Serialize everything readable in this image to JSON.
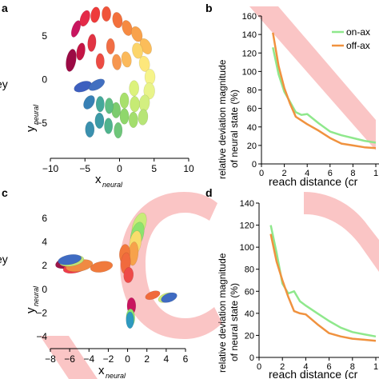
{
  "panels": {
    "a": {
      "letter": "a",
      "edge_label": "key",
      "xlabel": "x",
      "xlabel_sub": "neural",
      "ylabel": "y",
      "ylabel_sub": "neural",
      "xticks": [
        "−10",
        "−5",
        "0",
        "5",
        "10"
      ],
      "yticks": [
        "5",
        "0",
        "−5"
      ]
    },
    "b": {
      "letter": "b",
      "ylabel_line1": "relative deviation magnitude",
      "ylabel_line2": "of neural state (%)",
      "xlabel": "reach distance (cr",
      "xticks": [
        "0",
        "2",
        "4",
        "6",
        "8",
        "1"
      ],
      "yticks": [
        "160",
        "140",
        "120",
        "100",
        "80",
        "60",
        "40",
        "20",
        "0"
      ],
      "legend": [
        "on-ax",
        "off-ax"
      ]
    },
    "c": {
      "letter": "c",
      "edge_label": "key",
      "xlabel": "x",
      "xlabel_sub": "neural",
      "ylabel": "y",
      "ylabel_sub": "neural",
      "xticks": [
        "−8",
        "−6",
        "−4",
        "−2",
        "0",
        "2",
        "4",
        "6"
      ],
      "yticks": [
        "6",
        "4",
        "2",
        "0",
        "−2",
        "−4"
      ]
    },
    "d": {
      "letter": "d",
      "ylabel_line1": "relative deviation magnitude",
      "ylabel_line2": "of neural state (%)",
      "xlabel": "reach distance (cr",
      "xticks": [
        "0",
        "2",
        "4",
        "6",
        "8",
        "1"
      ],
      "yticks": [
        "140",
        "120",
        "100",
        "80",
        "60",
        "40",
        "20",
        "0"
      ]
    }
  },
  "colors": {
    "on_axis": "#8fe88c",
    "off_axis": "#f0923f",
    "watermark": "#f05a5a"
  },
  "chart_data": [
    {
      "panel": "b",
      "type": "line",
      "xlabel": "reach distance (cr",
      "ylabel": "relative deviation magnitude of neural state (%)",
      "xlim": [
        0,
        10
      ],
      "ylim": [
        0,
        160
      ],
      "series": [
        {
          "name": "on-ax",
          "color": "#8fe88c",
          "x": [
            1,
            1.5,
            2,
            2.5,
            3,
            3.5,
            4,
            5,
            6,
            7,
            8,
            9,
            10
          ],
          "y": [
            126,
            97,
            78,
            67,
            56,
            53,
            54,
            44,
            35,
            31,
            28,
            25,
            23
          ]
        },
        {
          "name": "off-ax",
          "color": "#f0923f",
          "x": [
            1,
            1.5,
            2,
            2.5,
            3,
            3.5,
            4,
            5,
            6,
            7,
            8,
            9,
            10
          ],
          "y": [
            142,
            106,
            82,
            65,
            51,
            47,
            43,
            36,
            28,
            22,
            20,
            18,
            17
          ]
        }
      ]
    },
    {
      "panel": "d",
      "type": "line",
      "xlabel": "reach distance (cr",
      "ylabel": "relative deviation magnitude of neural state (%)",
      "xlim": [
        0,
        10
      ],
      "ylim": [
        0,
        140
      ],
      "series": [
        {
          "name": "on-ax",
          "color": "#8fe88c",
          "x": [
            1,
            1.5,
            2,
            2.5,
            3,
            3.5,
            4,
            5,
            6,
            7,
            8,
            9,
            10
          ],
          "y": [
            120,
            95,
            67,
            58,
            60,
            51,
            47,
            40,
            33,
            27,
            23,
            21,
            19
          ]
        },
        {
          "name": "off-ax",
          "color": "#f0923f",
          "x": [
            1,
            1.5,
            2,
            2.5,
            3,
            3.5,
            4,
            5,
            6,
            7,
            8,
            9,
            10
          ],
          "y": [
            112,
            87,
            70,
            55,
            42,
            40,
            39,
            30,
            22,
            19,
            17,
            16,
            15
          ]
        }
      ]
    },
    {
      "panel": "a",
      "type": "scatter",
      "xlabel": "x neural",
      "ylabel": "y neural",
      "xlim": [
        -10,
        10
      ],
      "ylim": [
        -9,
        8
      ],
      "points": [
        {
          "x": -6.3,
          "y": 5.8,
          "w": 1.1,
          "h": 2.0,
          "rot": 20,
          "color": "#c8155f"
        },
        {
          "x": -5.0,
          "y": 7.0,
          "w": 1.3,
          "h": 1.9,
          "rot": 20,
          "color": "#e42a48"
        },
        {
          "x": -3.5,
          "y": 7.4,
          "w": 1.3,
          "h": 1.8,
          "rot": 10,
          "color": "#ee3b3b"
        },
        {
          "x": -1.9,
          "y": 7.5,
          "w": 1.3,
          "h": 1.7,
          "rot": 0,
          "color": "#f0543a"
        },
        {
          "x": -0.3,
          "y": 6.8,
          "w": 1.4,
          "h": 1.8,
          "rot": -10,
          "color": "#f3703c"
        },
        {
          "x": 1.1,
          "y": 5.9,
          "w": 1.4,
          "h": 1.8,
          "rot": -15,
          "color": "#f68a42"
        },
        {
          "x": 2.5,
          "y": 5.2,
          "w": 1.5,
          "h": 1.8,
          "rot": -20,
          "color": "#f8a24c"
        },
        {
          "x": 3.8,
          "y": 3.8,
          "w": 1.5,
          "h": 1.9,
          "rot": -25,
          "color": "#fbbd5a"
        },
        {
          "x": -7.0,
          "y": 2.2,
          "w": 1.4,
          "h": 2.6,
          "rot": 10,
          "color": "#9b0a44"
        },
        {
          "x": -5.6,
          "y": 3.2,
          "w": 1.2,
          "h": 2.0,
          "rot": 10,
          "color": "#c41545"
        },
        {
          "x": -4.0,
          "y": 4.2,
          "w": 1.2,
          "h": 2.0,
          "rot": 5,
          "color": "#e13343"
        },
        {
          "x": -2.8,
          "y": 2.1,
          "w": 1.2,
          "h": 1.8,
          "rot": 0,
          "color": "#ec4b43"
        },
        {
          "x": -1.3,
          "y": 3.8,
          "w": 1.2,
          "h": 1.8,
          "rot": 0,
          "color": "#f16e45"
        },
        {
          "x": -0.4,
          "y": 2.0,
          "w": 1.3,
          "h": 1.8,
          "rot": -5,
          "color": "#f6964f"
        },
        {
          "x": 1.0,
          "y": 2.3,
          "w": 1.4,
          "h": 1.8,
          "rot": -10,
          "color": "#fbb95b"
        },
        {
          "x": 2.6,
          "y": 3.3,
          "w": 1.5,
          "h": 1.8,
          "rot": -10,
          "color": "#fcd56a"
        },
        {
          "x": 3.6,
          "y": 1.8,
          "w": 1.5,
          "h": 1.8,
          "rot": -10,
          "color": "#fde77b"
        },
        {
          "x": 4.4,
          "y": 0.3,
          "w": 1.5,
          "h": 1.8,
          "rot": 0,
          "color": "#f6f48a"
        },
        {
          "x": 4.3,
          "y": -1.3,
          "w": 1.6,
          "h": 1.9,
          "rot": 0,
          "color": "#e9f48a"
        },
        {
          "x": 3.6,
          "y": -2.7,
          "w": 1.5,
          "h": 1.9,
          "rot": 5,
          "color": "#d3ef80"
        },
        {
          "x": 3.4,
          "y": -4.3,
          "w": 1.4,
          "h": 1.8,
          "rot": 5,
          "color": "#b7e577"
        },
        {
          "x": 2.1,
          "y": -1.0,
          "w": 1.4,
          "h": 1.8,
          "rot": 0,
          "color": "#dcf27c"
        },
        {
          "x": 2.2,
          "y": -2.8,
          "w": 1.4,
          "h": 1.8,
          "rot": 0,
          "color": "#c6eb74"
        },
        {
          "x": 2.0,
          "y": -4.6,
          "w": 1.3,
          "h": 1.8,
          "rot": 0,
          "color": "#a3de6d"
        },
        {
          "x": 0.7,
          "y": -2.4,
          "w": 1.3,
          "h": 1.8,
          "rot": 0,
          "color": "#a8e06c"
        },
        {
          "x": 0.7,
          "y": -4.2,
          "w": 1.3,
          "h": 1.8,
          "rot": 0,
          "color": "#8fd76b"
        },
        {
          "x": -0.5,
          "y": -3.5,
          "w": 1.3,
          "h": 1.8,
          "rot": 0,
          "color": "#7ccc6e"
        },
        {
          "x": -0.2,
          "y": -5.8,
          "w": 1.2,
          "h": 1.8,
          "rot": 0,
          "color": "#6fc67a"
        },
        {
          "x": -1.5,
          "y": -3.0,
          "w": 1.2,
          "h": 1.8,
          "rot": 0,
          "color": "#5fbf83"
        },
        {
          "x": -1.6,
          "y": -5.3,
          "w": 1.2,
          "h": 1.8,
          "rot": 0,
          "color": "#4fb38d"
        },
        {
          "x": -2.8,
          "y": -2.8,
          "w": 1.2,
          "h": 1.8,
          "rot": 0,
          "color": "#44a89a"
        },
        {
          "x": -2.9,
          "y": -4.7,
          "w": 1.3,
          "h": 1.8,
          "rot": 0,
          "color": "#3c9aa6"
        },
        {
          "x": -4.4,
          "y": -2.6,
          "w": 1.4,
          "h": 1.7,
          "rot": 30,
          "color": "#3780b5"
        },
        {
          "x": -4.3,
          "y": -5.7,
          "w": 1.3,
          "h": 1.8,
          "rot": 0,
          "color": "#3a90ae"
        },
        {
          "x": -5.3,
          "y": -0.8,
          "w": 1.4,
          "h": 2.1,
          "rot": 70,
          "color": "#3d5fbf"
        },
        {
          "x": -3.3,
          "y": -0.6,
          "w": 1.3,
          "h": 2.0,
          "rot": 60,
          "color": "#416fc0"
        }
      ]
    },
    {
      "panel": "c",
      "type": "scatter",
      "xlabel": "x neural",
      "ylabel": "y neural",
      "xlim": [
        -8,
        6
      ],
      "ylim": [
        -5,
        7
      ],
      "points": [
        {
          "x": 1.2,
          "y": 5.4,
          "w": 1.3,
          "h": 2.2,
          "rot": 20,
          "color": "#c8ec78"
        },
        {
          "x": 1.0,
          "y": 4.6,
          "w": 1.3,
          "h": 2.2,
          "rot": 15,
          "color": "#8de36e"
        },
        {
          "x": 0.8,
          "y": 3.9,
          "w": 1.2,
          "h": 2.1,
          "rot": 10,
          "color": "#f8dd6c"
        },
        {
          "x": 0.6,
          "y": 3.0,
          "w": 1.0,
          "h": 2.0,
          "rot": 5,
          "color": "#f7a24b"
        },
        {
          "x": -0.3,
          "y": 3.0,
          "w": 1.1,
          "h": 1.6,
          "rot": 5,
          "color": "#f2783c"
        },
        {
          "x": -0.2,
          "y": 2.2,
          "w": 1.0,
          "h": 1.8,
          "rot": 5,
          "color": "#f16a3d"
        },
        {
          "x": 0.1,
          "y": 1.2,
          "w": 1.0,
          "h": 1.3,
          "rot": 5,
          "color": "#ee4a48"
        },
        {
          "x": -6.1,
          "y": 2.3,
          "w": 1.2,
          "h": 2.3,
          "rot": 75,
          "color": "#9b1548"
        },
        {
          "x": -5.3,
          "y": 1.9,
          "w": 1.2,
          "h": 2.3,
          "rot": 75,
          "color": "#ee3d4a"
        },
        {
          "x": -5.0,
          "y": 2.0,
          "w": 1.2,
          "h": 2.3,
          "rot": 80,
          "color": "#f08a42"
        },
        {
          "x": -5.8,
          "y": 2.4,
          "w": 1.1,
          "h": 2.1,
          "rot": 80,
          "color": "#bfe376"
        },
        {
          "x": -6.0,
          "y": 2.5,
          "w": 1.0,
          "h": 2.0,
          "rot": 80,
          "color": "#3f6bc2"
        },
        {
          "x": -2.7,
          "y": 1.9,
          "w": 1.1,
          "h": 1.9,
          "rot": 80,
          "color": "#f07a3c"
        },
        {
          "x": 0.4,
          "y": -1.4,
          "w": 0.9,
          "h": 1.4,
          "rot": 0,
          "color": "#c8155f"
        },
        {
          "x": 0.3,
          "y": -2.4,
          "w": 0.9,
          "h": 1.5,
          "rot": 0,
          "color": "#8de36e"
        },
        {
          "x": 0.25,
          "y": -2.6,
          "w": 0.8,
          "h": 1.4,
          "rot": 0,
          "color": "#2e9ac0"
        },
        {
          "x": 2.6,
          "y": -0.5,
          "w": 0.8,
          "h": 1.3,
          "rot": 70,
          "color": "#f06a3b"
        },
        {
          "x": 4.0,
          "y": -0.7,
          "w": 0.9,
          "h": 1.4,
          "rot": 70,
          "color": "#cdec77"
        },
        {
          "x": 4.3,
          "y": -0.7,
          "w": 0.9,
          "h": 1.4,
          "rot": 70,
          "color": "#3f6bc2"
        }
      ]
    }
  ]
}
